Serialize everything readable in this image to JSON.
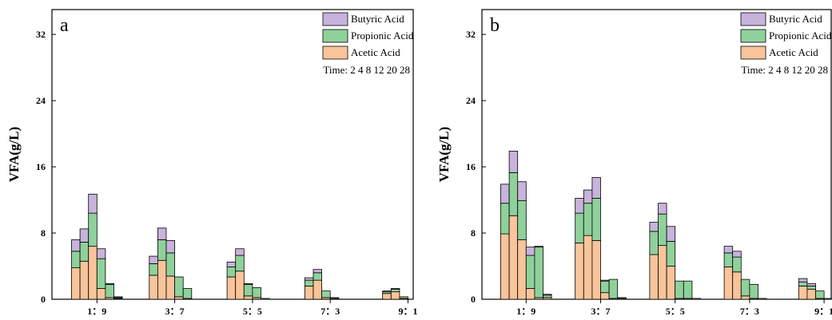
{
  "chart_data": [
    {
      "type": "bar",
      "stacked": true,
      "panel_label": "a",
      "ylabel": "VFA(g/L)",
      "ylim": [
        0,
        35
      ],
      "yticks": [
        0,
        8,
        16,
        24,
        32
      ],
      "categories": [
        "1：9",
        "3：7",
        "5：5",
        "7：3",
        "9：1"
      ],
      "time_points": [
        2,
        4,
        8,
        12,
        20,
        28
      ],
      "legend": {
        "position": "top-right",
        "entries": [
          "Butyric Acid",
          "Propionic Acid",
          "Acetic Acid"
        ],
        "note": "Time: 2 4 8 12 20 28"
      },
      "series": [
        {
          "name": "Acetic Acid",
          "color": "#f9c49a",
          "values": [
            [
              3.8,
              4.6,
              6.4,
              1.3,
              0.2,
              0.1
            ],
            [
              2.9,
              4.7,
              2.8,
              0.3,
              0.1,
              0.0
            ],
            [
              2.7,
              3.4,
              0.4,
              0.2,
              0.0,
              0.0
            ],
            [
              1.6,
              2.3,
              0.2,
              0.1,
              0.0,
              0.0
            ],
            [
              0.7,
              0.9,
              0.1,
              0.0,
              0.0,
              0.0
            ]
          ]
        },
        {
          "name": "Propionic Acid",
          "color": "#8fd19b",
          "values": [
            [
              2.0,
              2.3,
              4.0,
              3.6,
              1.6,
              0.1
            ],
            [
              1.4,
              2.5,
              2.8,
              2.4,
              1.2,
              0.0
            ],
            [
              1.2,
              1.9,
              1.4,
              1.2,
              0.1,
              0.0
            ],
            [
              0.7,
              0.9,
              0.8,
              0.1,
              0.0,
              0.0
            ],
            [
              0.2,
              0.3,
              0.2,
              0.0,
              0.0,
              0.0
            ]
          ]
        },
        {
          "name": "Butyric Acid",
          "color": "#c7b3db",
          "values": [
            [
              1.4,
              1.6,
              2.3,
              1.2,
              0.1,
              0.1
            ],
            [
              0.9,
              1.4,
              1.5,
              0.0,
              0.0,
              0.0
            ],
            [
              0.6,
              0.8,
              0.1,
              0.0,
              0.0,
              0.0
            ],
            [
              0.3,
              0.4,
              0.0,
              0.0,
              0.0,
              0.0
            ],
            [
              0.1,
              0.1,
              0.0,
              0.0,
              0.0,
              0.0
            ]
          ]
        }
      ]
    },
    {
      "type": "bar",
      "stacked": true,
      "panel_label": "b",
      "ylabel": "VFA(g/L)",
      "ylim": [
        0,
        35
      ],
      "yticks": [
        0,
        8,
        16,
        24,
        32
      ],
      "categories": [
        "1：9",
        "3：7",
        "5：5",
        "7：3",
        "9：1"
      ],
      "time_points": [
        2,
        4,
        8,
        12,
        20,
        28
      ],
      "legend": {
        "position": "top-right",
        "entries": [
          "Butyric Acid",
          "Propionic Acid",
          "Acetic Acid"
        ],
        "note": "Time: 2 4 8 12 20 28"
      },
      "series": [
        {
          "name": "Acetic Acid",
          "color": "#f9c49a",
          "values": [
            [
              7.9,
              10.1,
              7.2,
              1.3,
              0.2,
              0.2
            ],
            [
              6.8,
              7.7,
              7.1,
              0.8,
              0.1,
              0.1
            ],
            [
              5.4,
              6.5,
              4.0,
              0.1,
              0.1,
              0.0
            ],
            [
              3.9,
              3.3,
              0.4,
              0.1,
              0.0,
              0.0
            ],
            [
              1.6,
              1.2,
              0.1,
              0.0,
              0.0,
              0.0
            ]
          ]
        },
        {
          "name": "Propionic Acid",
          "color": "#8fd19b",
          "values": [
            [
              3.7,
              5.2,
              4.7,
              4.0,
              6.1,
              0.3
            ],
            [
              3.6,
              3.9,
              5.1,
              1.4,
              2.3,
              0.1
            ],
            [
              2.8,
              3.8,
              3.0,
              2.1,
              2.1,
              0.1
            ],
            [
              1.7,
              1.8,
              2.0,
              1.7,
              0.1,
              0.0
            ],
            [
              0.5,
              0.4,
              0.9,
              0.1,
              0.0,
              0.0
            ]
          ]
        },
        {
          "name": "Butyric Acid",
          "color": "#c7b3db",
          "values": [
            [
              2.3,
              2.6,
              2.3,
              1.0,
              0.1,
              0.1
            ],
            [
              1.8,
              1.6,
              2.5,
              0.1,
              0.0,
              0.0
            ],
            [
              1.1,
              1.3,
              1.8,
              0.0,
              0.0,
              0.0
            ],
            [
              0.8,
              0.7,
              0.0,
              0.0,
              0.0,
              0.0
            ],
            [
              0.4,
              0.3,
              0.0,
              0.0,
              0.0,
              0.0
            ]
          ]
        }
      ]
    }
  ]
}
